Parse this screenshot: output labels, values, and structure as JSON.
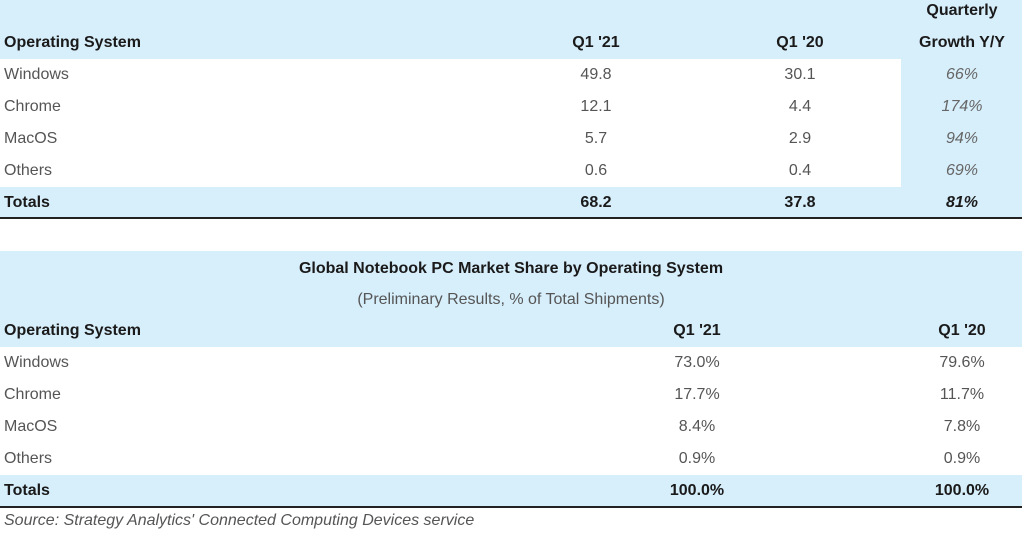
{
  "chart_data": [
    {
      "type": "table",
      "title": "",
      "columns": [
        "Operating System",
        "Q1 '21",
        "Q1 '20",
        "Quarterly",
        "Growth Y/Y"
      ],
      "rows": [
        {
          "os": "Windows",
          "q121": "49.8",
          "q120": "30.1",
          "growth": "66%"
        },
        {
          "os": "Chrome",
          "q121": "12.1",
          "q120": "4.4",
          "growth": "174%"
        },
        {
          "os": "MacOS",
          "q121": "5.7",
          "q120": "2.9",
          "growth": "94%"
        },
        {
          "os": "Others",
          "q121": "0.6",
          "q120": "0.4",
          "growth": "69%"
        }
      ],
      "total": {
        "label": "Totals",
        "q121": "68.2",
        "q120": "37.8",
        "growth": "81%"
      }
    },
    {
      "type": "table",
      "title": "Global Notebook PC Market Share by Operating System",
      "subtitle": "(Preliminary Results, % of Total Shipments)",
      "columns": [
        "Operating System",
        "Q1 '21",
        "Q1 '20"
      ],
      "rows": [
        {
          "os": "Windows",
          "q121": "73.0%",
          "q120": "79.6%"
        },
        {
          "os": "Chrome",
          "q121": "17.7%",
          "q120": "11.7%"
        },
        {
          "os": "MacOS",
          "q121": "8.4%",
          "q120": "7.8%"
        },
        {
          "os": "Others",
          "q121": "0.9%",
          "q120": "0.9%"
        }
      ],
      "total": {
        "label": "Totals",
        "q121": "100.0%",
        "q120": "100.0%"
      }
    }
  ],
  "source": "Source: Strategy Analytics' Connected Computing Devices service",
  "colors": {
    "header_bg": "#d7eefb",
    "rule": "#222222"
  }
}
